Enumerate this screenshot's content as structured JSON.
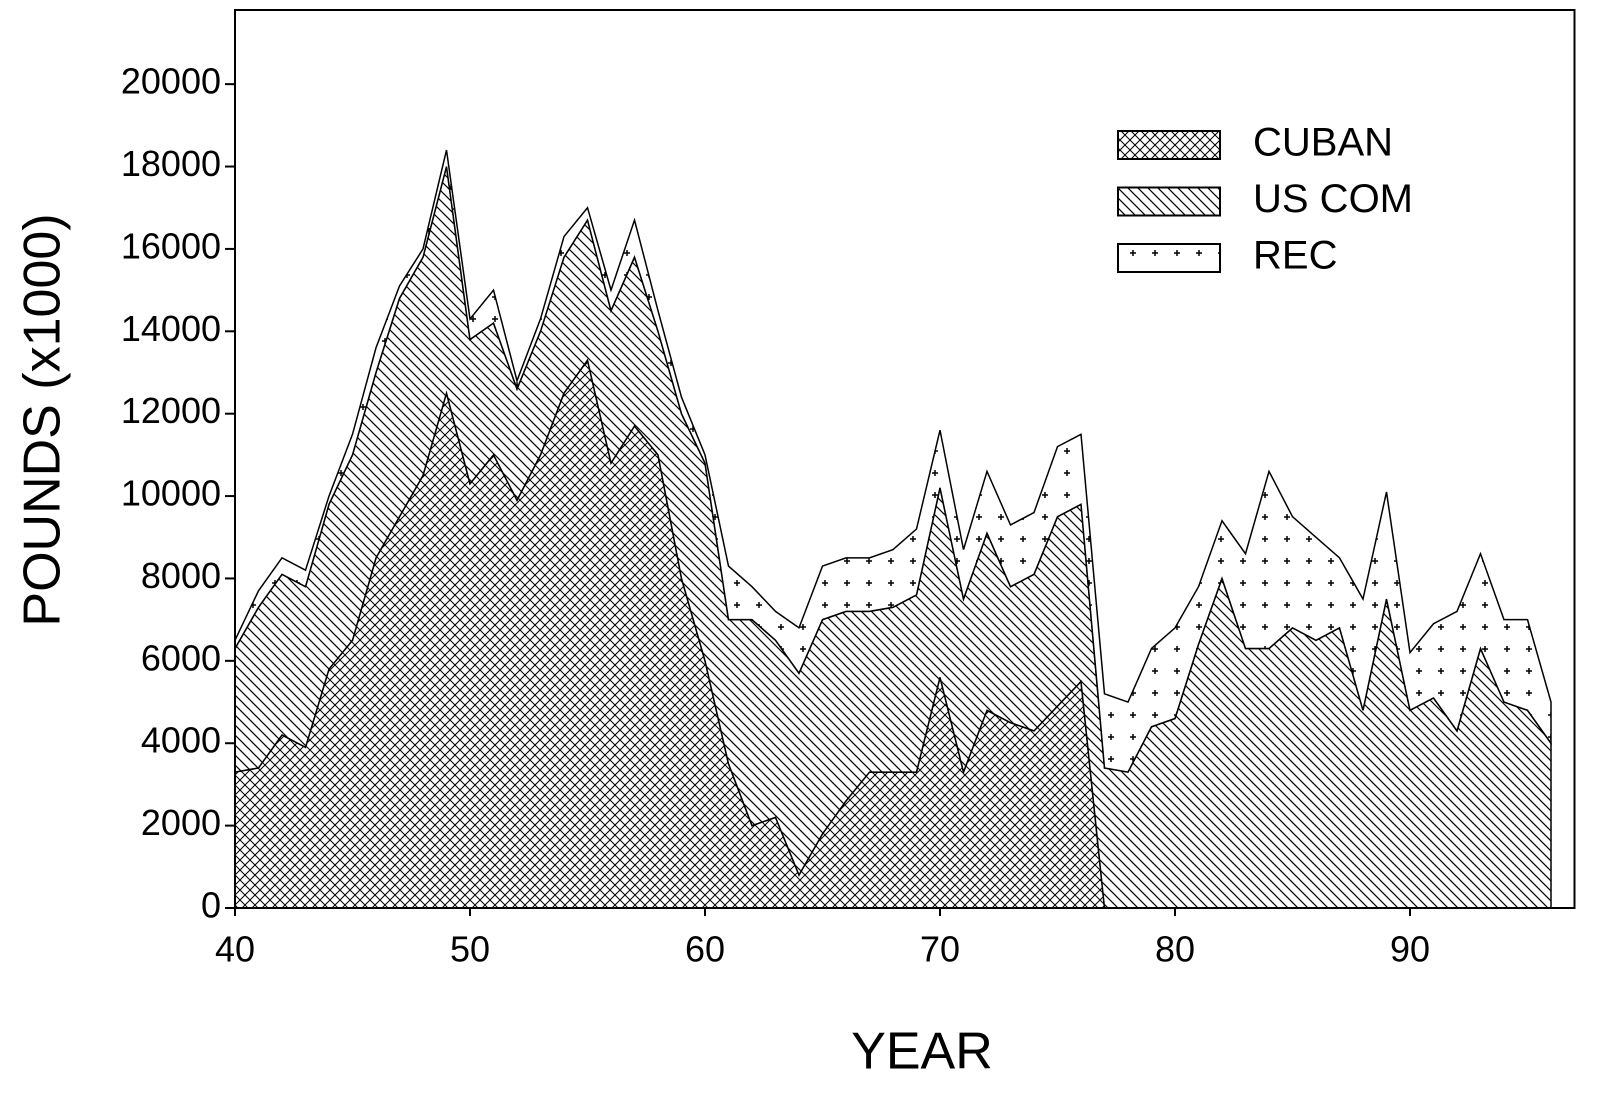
{
  "chart_data": {
    "type": "stacked-area",
    "x_label": "YEAR",
    "y_label": "POUNDS (x1000)",
    "x": [
      40,
      41,
      42,
      43,
      44,
      45,
      46,
      47,
      48,
      49,
      50,
      51,
      52,
      53,
      54,
      55,
      56,
      57,
      58,
      59,
      60,
      61,
      62,
      63,
      64,
      65,
      66,
      67,
      68,
      69,
      70,
      71,
      72,
      73,
      74,
      75,
      76,
      77,
      78,
      79,
      80,
      81,
      82,
      83,
      84,
      85,
      86,
      87,
      88,
      89,
      90,
      91,
      92,
      93,
      94,
      95,
      96
    ],
    "series": [
      {
        "name": "CUBAN",
        "color": "#000000",
        "pattern": "crosshatch",
        "values": [
          3300,
          3400,
          4200,
          3900,
          5800,
          6500,
          8500,
          9500,
          10500,
          12500,
          10300,
          11000,
          9900,
          11000,
          12500,
          13300,
          10800,
          11700,
          11000,
          8000,
          6000,
          3500,
          2000,
          2200,
          800,
          1800,
          2600,
          3300,
          3300,
          3300,
          5600,
          3300,
          4800,
          4500,
          4300,
          4900,
          5500,
          0,
          0,
          0,
          0,
          0,
          0,
          0,
          0,
          0,
          0,
          0,
          0,
          0,
          0,
          0,
          0,
          0,
          0,
          0,
          0
        ]
      },
      {
        "name": "US COM",
        "color": "#000000",
        "pattern": "diagonal",
        "values": [
          3000,
          3900,
          3900,
          3900,
          4000,
          4500,
          4500,
          5300,
          5300,
          5500,
          3500,
          3200,
          2700,
          3000,
          3300,
          3400,
          3700,
          4100,
          3000,
          4000,
          4800,
          3500,
          5000,
          4300,
          4900,
          5200,
          4600,
          3900,
          4000,
          4300,
          4600,
          4200,
          4300,
          3300,
          3800,
          4600,
          4300,
          3400,
          3300,
          4400,
          4600,
          6400,
          8000,
          6300,
          6300,
          6800,
          6500,
          6800,
          4800,
          7500,
          4800,
          5100,
          4300,
          6300,
          5000,
          4800,
          4000
        ]
      },
      {
        "name": "REC",
        "color": "#000000",
        "pattern": "plus",
        "values": [
          200,
          400,
          400,
          400,
          200,
          500,
          600,
          300,
          200,
          400,
          500,
          800,
          200,
          300,
          500,
          300,
          500,
          900,
          500,
          400,
          200,
          1300,
          800,
          700,
          1100,
          1300,
          1300,
          1300,
          1400,
          1600,
          1400,
          1200,
          1500,
          1500,
          1500,
          1700,
          1700,
          1800,
          1700,
          1900,
          2200,
          1400,
          1400,
          2300,
          4300,
          2700,
          2500,
          1700,
          2700,
          2600,
          1400,
          1800,
          2900,
          2300,
          2000,
          2200,
          1000
        ]
      }
    ],
    "xlim": [
      40,
      97
    ],
    "xticks": [
      40,
      50,
      60,
      70,
      80,
      90
    ],
    "ylim": [
      0,
      21800
    ],
    "yticks": [
      0,
      2000,
      4000,
      6000,
      8000,
      10000,
      12000,
      14000,
      16000,
      18000,
      20000
    ],
    "legend": "upper right",
    "grid": false
  }
}
